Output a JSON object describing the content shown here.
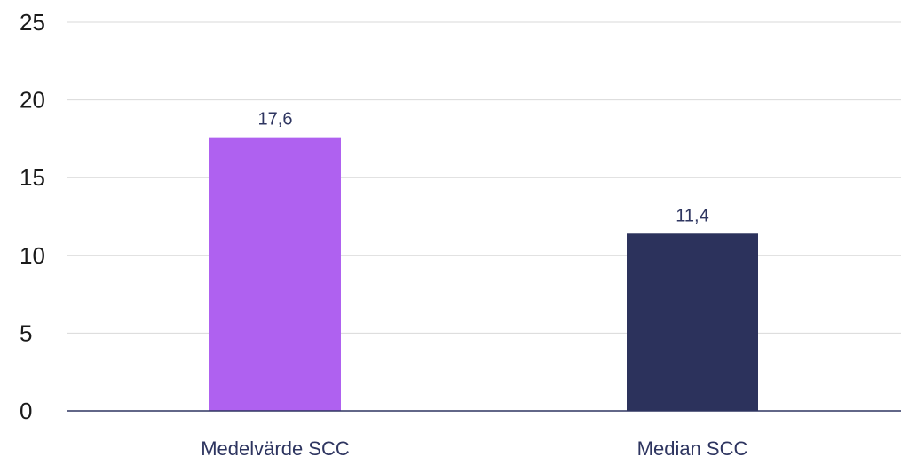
{
  "chart_data": {
    "type": "bar",
    "categories": [
      "Medelvärde SCC",
      "Median SCC"
    ],
    "values": [
      17.6,
      11.4
    ],
    "value_labels": [
      "17,6",
      "11,4"
    ],
    "bar_colors": [
      "#af61f0",
      "#2c325c"
    ],
    "yticks": [
      "0",
      "5",
      "10",
      "15",
      "20",
      "25"
    ],
    "ylim": [
      0,
      25
    ],
    "grid": true,
    "legend": false
  }
}
